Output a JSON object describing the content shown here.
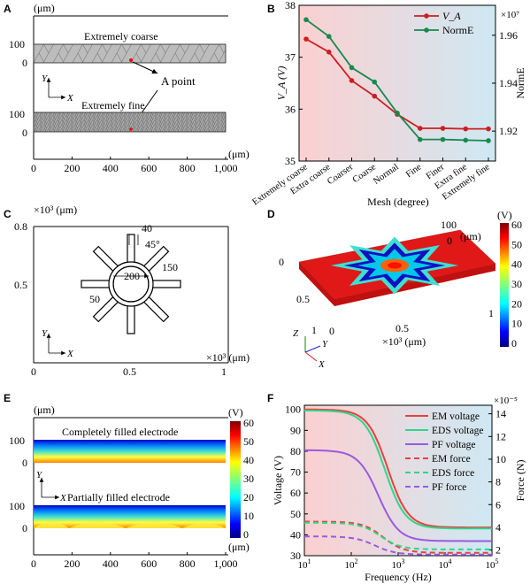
{
  "figure": {
    "panel_labels": [
      "A",
      "B",
      "C",
      "D",
      "E",
      "F"
    ]
  },
  "panelA": {
    "unit_top": "(μm)",
    "unit_bottom": "(μm)",
    "label_coarse": "Extremely coarse",
    "label_fine": "Extremely fine",
    "label_point": "A point",
    "y_ticks": [
      "100",
      "0"
    ],
    "x_ticks": [
      "0",
      "200",
      "400",
      "600",
      "800",
      "1,000"
    ],
    "axis_y": "Y",
    "axis_x": "X",
    "colors": {
      "mesh_fill": "#b8b8b8",
      "point": "#ff0000"
    }
  },
  "panelC": {
    "unit_top": "×10³ (μm)",
    "unit_bottom": "×10³ (μm)",
    "y_ticks": [
      "0.8",
      "0.5"
    ],
    "x_ticks": [
      "0",
      "0.5",
      "1"
    ],
    "dims": [
      "40",
      "45°",
      "150",
      "200",
      "50"
    ],
    "axis_y": "Y",
    "axis_x": "X"
  },
  "panelD": {
    "colorbar_unit": "(V)",
    "colorbar_ticks": [
      "60",
      "50",
      "40",
      "30",
      "20",
      "10",
      "0"
    ],
    "label_top": "100",
    "label_top2": "0",
    "label_um": "(μm)",
    "left_ticks": [
      "0",
      "0.5",
      "1"
    ],
    "bottom_ticks": [
      "0",
      "0.5",
      "1"
    ],
    "bottom_unit": "×10³ (μm)",
    "axes": [
      "Z",
      "Y",
      "X"
    ]
  },
  "panelE": {
    "unit_top": "(μm)",
    "unit_bottom": "(μm)",
    "label_full": "Completely filled electrode",
    "label_partial": "Partially filled electrode",
    "y_ticks": [
      "100",
      "0"
    ],
    "x_ticks": [
      "0",
      "200",
      "400",
      "600",
      "800",
      "1,000"
    ],
    "colorbar_unit": "(V)",
    "colorbar_ticks": [
      "60",
      "50",
      "40",
      "30",
      "20",
      "10",
      "0"
    ],
    "axis_y": "Y",
    "axis_x": "X"
  },
  "chart_data": [
    {
      "panel": "B",
      "type": "line",
      "categories": [
        "Extremely coarse",
        "Extra coarse",
        "Coarser",
        "Coarse",
        "Normal",
        "Fine",
        "Finer",
        "Extra fine",
        "Extremely fine"
      ],
      "xlabel": "Mesh (degree)",
      "ylabel": "V_A (V)",
      "y2label": "NormE",
      "y2_multiplier": "×10⁷",
      "ylim": [
        35,
        38
      ],
      "y2lim": [
        1.9075,
        1.9725
      ],
      "yticks": [
        35,
        36,
        37,
        38
      ],
      "y2ticks": [
        1.92,
        1.94,
        1.96
      ],
      "series": [
        {
          "name": "V_A",
          "axis": "left",
          "color": "#cc1f1f",
          "values": [
            37.35,
            37.1,
            36.55,
            36.25,
            35.9,
            35.63,
            35.63,
            35.62,
            35.62
          ]
        },
        {
          "name": "NormE",
          "axis": "right",
          "color": "#168a4e",
          "values": [
            1.9665,
            1.9595,
            1.9465,
            1.9405,
            1.9275,
            1.9165,
            1.9165,
            1.9162,
            1.916
          ]
        }
      ],
      "legend_position": "top-right",
      "background": [
        "#fbd0d0",
        "#cfe8f3"
      ]
    },
    {
      "panel": "F",
      "type": "line",
      "xlabel": "Frequency (Hz)",
      "ylabel": "Voltage (V)",
      "y2label": "Force (N)",
      "y2_multiplier": "×10⁻⁵",
      "xscale": "log",
      "xlim": [
        10,
        100000
      ],
      "xticks": [
        10,
        100,
        1000,
        10000,
        100000
      ],
      "ylim": [
        30,
        102
      ],
      "yticks": [
        30,
        40,
        50,
        60,
        70,
        80,
        90,
        100
      ],
      "y2lim": [
        1.5,
        14.75
      ],
      "y2ticks": [
        2,
        4,
        6,
        8,
        10,
        12,
        14
      ],
      "series": [
        {
          "name": "EM voltage",
          "axis": "left",
          "style": "solid",
          "color": "#e8413b",
          "fc": 600,
          "hi": 100,
          "lo": 43.5
        },
        {
          "name": "EDS voltage",
          "axis": "left",
          "style": "solid",
          "color": "#2ed68c",
          "fc": 520,
          "hi": 99.5,
          "lo": 43
        },
        {
          "name": "PF voltage",
          "axis": "left",
          "style": "solid",
          "color": "#9b59e0",
          "fc": 380,
          "hi": 80.5,
          "lo": 37
        },
        {
          "name": "EM force",
          "axis": "right",
          "style": "dashed",
          "color": "#e8413b",
          "fc": 480,
          "hi": 4.5,
          "lo": 1.75
        },
        {
          "name": "EDS force",
          "axis": "right",
          "style": "dashed",
          "color": "#2ed68c",
          "fc": 420,
          "hi": 4.4,
          "lo": 2.05
        },
        {
          "name": "PF force",
          "axis": "right",
          "style": "dashed",
          "color": "#9b59e0",
          "fc": 320,
          "hi": 3.2,
          "lo": 1.6
        }
      ],
      "legend_position": "top-right",
      "background": [
        "#fbd0d0",
        "#cfe8f3"
      ]
    }
  ]
}
